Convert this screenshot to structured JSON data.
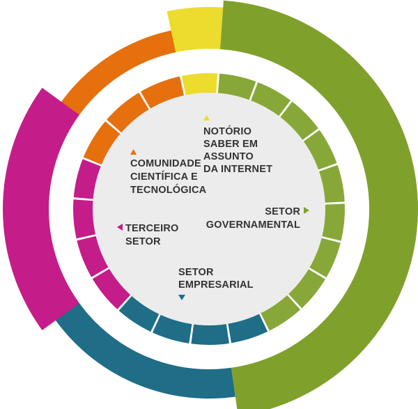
{
  "colors": {
    "governmental": "#80a02c",
    "governmental_inner": "#87a838",
    "business": "#1f6d87",
    "third_sector": "#c41d8a",
    "scientific": "#e6700e",
    "notorio": "#ecdc2d",
    "inner_fill": "#ececec",
    "separator_ring": "#ffffff"
  },
  "sectors": [
    {
      "id": "notorio",
      "lines": [
        "NOTÓRIO",
        "SABER EM",
        "ASSUNTO",
        "DA INTERNET"
      ],
      "marker_icon": "triangle-up-icon",
      "inner_segments": 1
    },
    {
      "id": "governmental",
      "lines": [
        "SETOR",
        "GOVERNAMENTAL"
      ],
      "marker_icon": "triangle-right-icon",
      "inner_segments": 9
    },
    {
      "id": "business",
      "lines": [
        "SETOR",
        "EMPRESARIAL"
      ],
      "marker_icon": "triangle-down-icon",
      "inner_segments": 4
    },
    {
      "id": "third_sector",
      "lines": [
        "TERCEIRO",
        "SETOR"
      ],
      "marker_icon": "triangle-left-icon",
      "inner_segments": 4
    },
    {
      "id": "scientific",
      "lines": [
        "COMUNIDADE",
        "CIENTÍFICA E",
        "TECNOLÓGICA"
      ],
      "marker_icon": "triangle-up-icon",
      "inner_segments": 3
    }
  ]
}
